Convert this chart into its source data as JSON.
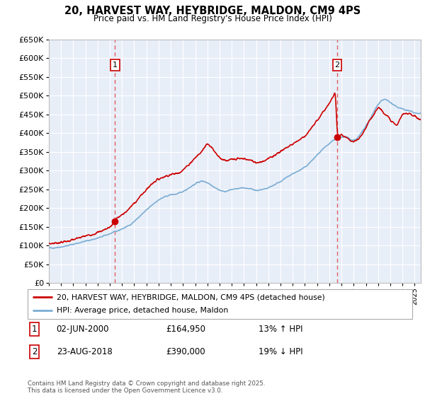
{
  "title": "20, HARVEST WAY, HEYBRIDGE, MALDON, CM9 4PS",
  "subtitle": "Price paid vs. HM Land Registry's House Price Index (HPI)",
  "legend_line1": "20, HARVEST WAY, HEYBRIDGE, MALDON, CM9 4PS (detached house)",
  "legend_line2": "HPI: Average price, detached house, Maldon",
  "transaction1_date": "02-JUN-2000",
  "transaction1_price": "£164,950",
  "transaction1_hpi": "13% ↑ HPI",
  "transaction1_year": 2000.42,
  "transaction1_value": 164950,
  "transaction2_date": "23-AUG-2018",
  "transaction2_price": "£390,000",
  "transaction2_hpi": "19% ↓ HPI",
  "transaction2_year": 2018.64,
  "transaction2_value": 390000,
  "xmin": 1995,
  "xmax": 2025.5,
  "ymin": 0,
  "ymax": 650000,
  "yticks": [
    0,
    50000,
    100000,
    150000,
    200000,
    250000,
    300000,
    350000,
    400000,
    450000,
    500000,
    550000,
    600000,
    650000
  ],
  "background_color": "#E8EEF8",
  "grid_color": "#FFFFFF",
  "red_line_color": "#CC0000",
  "blue_line_color": "#7AADD4",
  "dashed_line_color": "#E06060",
  "footer_text": "Contains HM Land Registry data © Crown copyright and database right 2025.\nThis data is licensed under the Open Government Licence v3.0.",
  "outer_bg": "#FFFFFF",
  "hpi_years": [
    1995.0,
    1995.5,
    1996.0,
    1996.5,
    1997.0,
    1997.5,
    1998.0,
    1998.5,
    1999.0,
    1999.5,
    2000.0,
    2000.5,
    2001.0,
    2001.5,
    2002.0,
    2002.5,
    2003.0,
    2003.5,
    2004.0,
    2004.5,
    2005.0,
    2005.5,
    2006.0,
    2006.5,
    2007.0,
    2007.5,
    2008.0,
    2008.5,
    2009.0,
    2009.5,
    2010.0,
    2010.5,
    2011.0,
    2011.5,
    2012.0,
    2012.5,
    2013.0,
    2013.5,
    2014.0,
    2014.5,
    2015.0,
    2015.5,
    2016.0,
    2016.5,
    2017.0,
    2017.5,
    2018.0,
    2018.5,
    2019.0,
    2019.5,
    2020.0,
    2020.5,
    2021.0,
    2021.5,
    2022.0,
    2022.5,
    2023.0,
    2023.5,
    2024.0,
    2024.5,
    2025.0
  ],
  "hpi_values": [
    93000,
    95000,
    97000,
    100000,
    104000,
    108000,
    112000,
    116000,
    120000,
    126000,
    132000,
    138000,
    145000,
    153000,
    165000,
    180000,
    195000,
    210000,
    222000,
    230000,
    236000,
    238000,
    245000,
    255000,
    265000,
    272000,
    268000,
    258000,
    248000,
    245000,
    250000,
    252000,
    254000,
    252000,
    248000,
    250000,
    255000,
    263000,
    272000,
    282000,
    292000,
    300000,
    310000,
    325000,
    342000,
    358000,
    372000,
    385000,
    390000,
    388000,
    382000,
    395000,
    420000,
    448000,
    478000,
    490000,
    482000,
    470000,
    465000,
    460000,
    455000
  ],
  "red_years": [
    1995.0,
    1995.5,
    1996.0,
    1996.5,
    1997.0,
    1997.5,
    1998.0,
    1998.5,
    1999.0,
    1999.5,
    2000.0,
    2000.42,
    2000.5,
    2001.0,
    2001.5,
    2002.0,
    2002.5,
    2003.0,
    2003.5,
    2004.0,
    2004.5,
    2005.0,
    2005.5,
    2006.0,
    2006.5,
    2007.0,
    2007.5,
    2008.0,
    2008.5,
    2009.0,
    2009.5,
    2010.0,
    2010.5,
    2011.0,
    2011.5,
    2012.0,
    2012.5,
    2013.0,
    2013.5,
    2014.0,
    2014.5,
    2015.0,
    2015.5,
    2016.0,
    2016.5,
    2017.0,
    2017.5,
    2018.0,
    2018.5,
    2018.64,
    2019.0,
    2019.5,
    2020.0,
    2020.5,
    2021.0,
    2021.5,
    2022.0,
    2022.5,
    2023.0,
    2023.5,
    2024.0,
    2024.5,
    2025.0
  ],
  "red_values": [
    105000,
    107000,
    109000,
    112000,
    116000,
    121000,
    126000,
    130000,
    135000,
    142000,
    150000,
    164950,
    172000,
    182000,
    196000,
    214000,
    232000,
    250000,
    268000,
    278000,
    285000,
    290000,
    293000,
    302000,
    318000,
    335000,
    350000,
    375000,
    355000,
    335000,
    325000,
    330000,
    332000,
    332000,
    328000,
    322000,
    325000,
    332000,
    342000,
    352000,
    362000,
    372000,
    382000,
    393000,
    412000,
    435000,
    458000,
    480000,
    510000,
    390000,
    395000,
    385000,
    375000,
    388000,
    415000,
    445000,
    470000,
    455000,
    435000,
    420000,
    450000,
    455000,
    445000
  ]
}
